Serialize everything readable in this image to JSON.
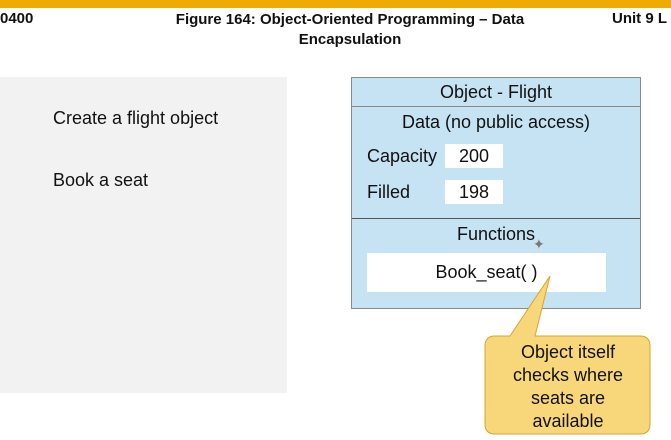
{
  "header": {
    "left_code": "0400",
    "figure_title": "Figure 164: Object-Oriented Programming – Data Encapsulation",
    "unit_label": "Unit 9 L"
  },
  "left_panel": {
    "actions": [
      "Create a flight object",
      "Book a seat"
    ]
  },
  "object": {
    "title": "Object - Flight",
    "data_title": "Data (no public access)",
    "fields": [
      {
        "label": "Capacity",
        "value": "200"
      },
      {
        "label": "Filled",
        "value": "198"
      }
    ],
    "functions_title": "Functions",
    "function_name": "Book_seat( )"
  },
  "callout": {
    "lines": [
      "Object itself",
      "checks where",
      "seats are",
      "available"
    ]
  },
  "colors": {
    "top_bar": "#f0ab00",
    "object_fill": "#c6e3f4",
    "callout_fill": "#f8d67a",
    "panel_fill": "#f2f2f2"
  }
}
